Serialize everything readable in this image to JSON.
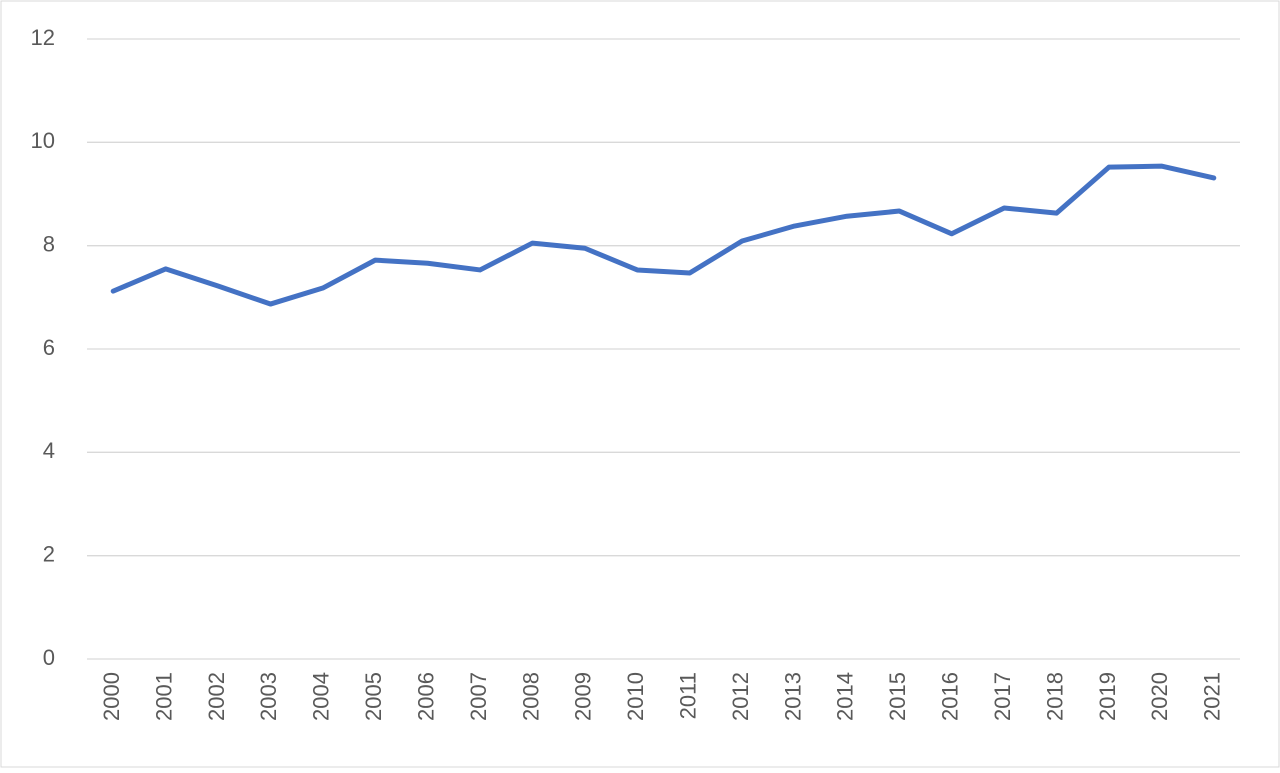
{
  "chart_data": {
    "type": "line",
    "categories": [
      "2000",
      "2001",
      "2002",
      "2003",
      "2004",
      "2005",
      "2006",
      "2007",
      "2008",
      "2009",
      "2010",
      "2011",
      "2012",
      "2013",
      "2014",
      "2015",
      "2016",
      "2017",
      "2018",
      "2019",
      "2020",
      "2021"
    ],
    "series": [
      {
        "color": "#4472c4",
        "values": [
          7.12,
          7.55,
          7.22,
          6.87,
          7.18,
          7.72,
          7.66,
          7.53,
          8.05,
          7.95,
          7.53,
          7.47,
          8.09,
          8.38,
          8.57,
          8.67,
          8.23,
          8.73,
          8.63,
          9.52,
          9.54,
          9.31
        ]
      }
    ],
    "ylim": [
      0,
      12
    ],
    "yticks": [
      0,
      2,
      4,
      6,
      8,
      10,
      12
    ],
    "grid": true
  }
}
